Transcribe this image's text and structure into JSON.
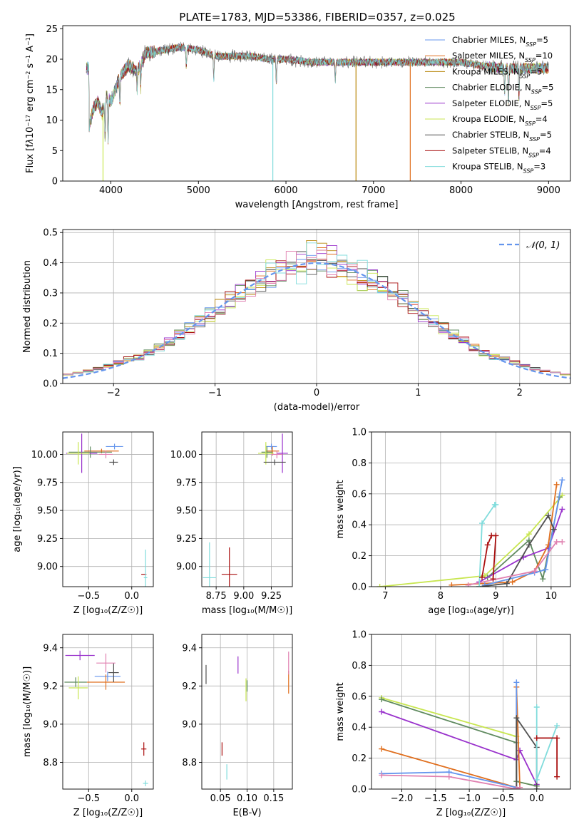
{
  "title": "PLATE=1783, MJD=53386, FIBERID=0357, z=0.025",
  "colors": {
    "chabrier_miles": "#6495ed",
    "salpeter_miles": "#e07020",
    "kroupa_miles": "#b8860b",
    "chabrier_elodie": "#5f8a5f",
    "salpeter_elodie": "#9932cc",
    "kroupa_elodie": "#c8e650",
    "chabrier_stelib": "#505050",
    "salpeter_stelib": "#aa1010",
    "kroupa_stelib": "#80dcdc",
    "normal": "#6495ed",
    "pink": "#e080b0"
  },
  "chart_data": [
    {
      "id": "spectrum",
      "type": "line",
      "xlabel": "wavelength [Angstrom, rest frame]",
      "ylabel_html": "Flux [f<tspan font-style='italic'>λ</tspan>10<tspan baseline-shift='super' font-size='8'>−17</tspan> erg cm<tspan baseline-shift='super' font-size='8'>−2</tspan> s<tspan baseline-shift='super' font-size='8'>−1</tspan> A<tspan baseline-shift='super' font-size='8'>−1</tspan>]",
      "xlim": [
        3450,
        9250
      ],
      "ylim": [
        0,
        25.5
      ],
      "xticks": [
        4000,
        5000,
        6000,
        7000,
        8000,
        9000
      ],
      "yticks": [
        0,
        5,
        10,
        15,
        20,
        25
      ],
      "grid": false,
      "legend_position": "top-right",
      "legend": [
        {
          "label": "Chabrier MILES, N",
          "sub": "SSP",
          "tail": "=5",
          "color": "#6495ed"
        },
        {
          "label": "Salpeter MILES, N",
          "sub": "SSP",
          "tail": "=10",
          "color": "#e07020"
        },
        {
          "label": "Kroupa MILES, N",
          "sub": "SSP",
          "tail": "=5",
          "color": "#b8860b"
        },
        {
          "label": "Chabrier ELODIE, N",
          "sub": "SSP",
          "tail": "=5",
          "color": "#5f8a5f"
        },
        {
          "label": "Salpeter ELODIE, N",
          "sub": "SSP",
          "tail": "=5",
          "color": "#9932cc"
        },
        {
          "label": "Kroupa ELODIE, N",
          "sub": "SSP",
          "tail": "=4",
          "color": "#c8e650"
        },
        {
          "label": "Chabrier STELIB, N",
          "sub": "SSP",
          "tail": "=5",
          "color": "#505050"
        },
        {
          "label": "Salpeter STELIB, N",
          "sub": "SSP",
          "tail": "=4",
          "color": "#aa1010"
        },
        {
          "label": "Kroupa STELIB, N",
          "sub": "SSP",
          "tail": "=3",
          "color": "#80dcdc"
        }
      ],
      "continuum": [
        [
          3750,
          9
        ],
        [
          3800,
          12
        ],
        [
          3850,
          13
        ],
        [
          3900,
          11
        ],
        [
          3950,
          14
        ],
        [
          4000,
          13
        ],
        [
          4100,
          17
        ],
        [
          4200,
          19
        ],
        [
          4300,
          18
        ],
        [
          4400,
          21
        ],
        [
          4600,
          21.5
        ],
        [
          4800,
          22
        ],
        [
          5000,
          21.5
        ],
        [
          5200,
          20.5
        ],
        [
          5400,
          20.5
        ],
        [
          5600,
          20.5
        ],
        [
          5800,
          20
        ],
        [
          6000,
          20
        ],
        [
          6300,
          19.5
        ],
        [
          6600,
          19.5
        ],
        [
          7000,
          19.5
        ],
        [
          7300,
          19.5
        ],
        [
          7500,
          19.5
        ],
        [
          8000,
          19.5
        ],
        [
          8200,
          19
        ],
        [
          8500,
          18.5
        ],
        [
          8800,
          18.5
        ],
        [
          9000,
          18.5
        ]
      ],
      "absorption_lines": [
        [
          3934,
          6
        ],
        [
          3968,
          7
        ],
        [
          4102,
          4
        ],
        [
          4300,
          3
        ],
        [
          4340,
          4
        ],
        [
          4861,
          3
        ],
        [
          5175,
          4
        ],
        [
          5890,
          4
        ],
        [
          6563,
          3
        ],
        [
          8498,
          4
        ],
        [
          8542,
          6
        ],
        [
          8662,
          5
        ]
      ],
      "drops": [
        {
          "x": 3910,
          "to": 0,
          "color": "#c8e650"
        },
        {
          "x": 5850,
          "to": 0,
          "color": "#80dcdc"
        },
        {
          "x": 6800,
          "to": 0,
          "color": "#b8860b"
        },
        {
          "x": 7420,
          "to": 0,
          "color": "#e07020"
        }
      ]
    },
    {
      "id": "residuals",
      "type": "line",
      "xlabel": "(data-model)/error",
      "ylabel": "Normed distribution",
      "xlim": [
        -2.5,
        2.5
      ],
      "ylim": [
        0,
        0.51
      ],
      "xticks": [
        -2,
        -1,
        0,
        1,
        2
      ],
      "yticks": [
        0,
        0.1,
        0.2,
        0.3,
        0.4,
        0.5
      ],
      "grid": true,
      "legend_position": "top-right",
      "legend_label": "𝒩(0, 1)",
      "bin_width": 0.1
    },
    {
      "id": "age_vs_Z",
      "type": "scatter",
      "xlabel": "Z [log₁₀(Z/Z☉)]",
      "ylabel": "age  [log₁₀(age/yr)]",
      "xlim": [
        -0.8,
        0.25
      ],
      "ylim": [
        8.82,
        10.2
      ],
      "xticks": [
        -0.5,
        0.0
      ],
      "yticks": [
        9.0,
        9.25,
        9.5,
        9.75,
        10.0
      ],
      "grid": true,
      "points": [
        {
          "x": -0.2,
          "y": 10.07,
          "xerr": 0.1,
          "yerr": 0.05,
          "color": "#6495ed"
        },
        {
          "x": -0.35,
          "y": 10.03,
          "xerr": 0.2,
          "yerr": 0.04,
          "color": "#e07020"
        },
        {
          "x": -0.48,
          "y": 10.02,
          "xerr": 0.25,
          "yerr": 0.1,
          "color": "#5f8a5f"
        },
        {
          "x": -0.58,
          "y": 10.01,
          "xerr": 0.18,
          "yerr": 0.35,
          "color": "#9932cc"
        },
        {
          "x": -0.62,
          "y": 10.01,
          "xerr": 0.13,
          "yerr": 0.2,
          "color": "#c8e650"
        },
        {
          "x": -0.21,
          "y": 9.93,
          "xerr": 0.05,
          "yerr": 0.05,
          "color": "#505050"
        },
        {
          "x": 0.14,
          "y": 8.93,
          "xerr": 0.03,
          "yerr": 0.0,
          "color": "#aa1010"
        },
        {
          "x": 0.16,
          "y": 8.9,
          "xerr": 0.02,
          "yerr": 0.5,
          "color": "#80dcdc"
        },
        {
          "x": -0.3,
          "y": 10.0,
          "xerr": 0.08,
          "yerr": 0.07,
          "color": "#e080b0"
        }
      ]
    },
    {
      "id": "age_vs_mass",
      "type": "scatter",
      "xlabel": "mass [log₁₀(M/M☉)]",
      "xlim": [
        8.62,
        9.44
      ],
      "ylim": [
        8.82,
        10.2
      ],
      "xticks": [
        8.75,
        9.0,
        9.25
      ],
      "yticks": [
        9.0,
        9.25,
        9.5,
        9.75,
        10.0
      ],
      "grid": true,
      "points": [
        {
          "x": 9.25,
          "y": 10.07,
          "xerr": 0.05,
          "yerr": 0.05,
          "color": "#6495ed"
        },
        {
          "x": 9.26,
          "y": 10.03,
          "xerr": 0.06,
          "yerr": 0.08,
          "color": "#e07020"
        },
        {
          "x": 9.21,
          "y": 10.02,
          "xerr": 0.05,
          "yerr": 0.1,
          "color": "#5f8a5f"
        },
        {
          "x": 9.35,
          "y": 10.01,
          "xerr": 0.05,
          "yerr": 0.35,
          "color": "#9932cc"
        },
        {
          "x": 9.2,
          "y": 10.01,
          "xerr": 0.07,
          "yerr": 0.2,
          "color": "#c8e650"
        },
        {
          "x": 9.28,
          "y": 9.93,
          "xerr": 0.1,
          "yerr": 0.05,
          "color": "#505050"
        },
        {
          "x": 8.87,
          "y": 8.93,
          "xerr": 0.07,
          "yerr": 0.48,
          "color": "#aa1010"
        },
        {
          "x": 8.69,
          "y": 8.9,
          "xerr": 0.06,
          "yerr": 0.63,
          "color": "#80dcdc"
        },
        {
          "x": 9.3,
          "y": 10.0,
          "xerr": 0.05,
          "yerr": 0.07,
          "color": "#e080b0"
        }
      ]
    },
    {
      "id": "massweight_vs_age",
      "type": "line",
      "xlabel": "age  [log₁₀(age/yr)]",
      "ylabel": "mass weight",
      "xlim": [
        6.75,
        10.35
      ],
      "ylim": [
        0,
        1.0
      ],
      "xticks": [
        7,
        8,
        9,
        10
      ],
      "yticks": [
        0,
        0.2,
        0.4,
        0.6,
        0.8,
        1.0
      ],
      "grid": true,
      "series": [
        {
          "color": "#c8e650",
          "x": [
            6.9,
            8.8,
            9.6,
            10.2
          ],
          "y": [
            0.0,
            0.07,
            0.34,
            0.59
          ]
        },
        {
          "color": "#5f8a5f",
          "x": [
            8.85,
            9.6,
            9.85,
            10.15
          ],
          "y": [
            0.06,
            0.3,
            0.05,
            0.58
          ]
        },
        {
          "color": "#9932cc",
          "x": [
            8.7,
            9.5,
            9.95,
            10.2
          ],
          "y": [
            0.03,
            0.19,
            0.25,
            0.5
          ]
        },
        {
          "color": "#e07020",
          "x": [
            8.2,
            9.3,
            9.7,
            9.95,
            10.1
          ],
          "y": [
            0.01,
            0.03,
            0.1,
            0.27,
            0.66
          ]
        },
        {
          "color": "#6495ed",
          "x": [
            8.8,
            9.7,
            9.9,
            10.2
          ],
          "y": [
            0.01,
            0.09,
            0.11,
            0.69
          ]
        },
        {
          "color": "#505050",
          "x": [
            8.7,
            9.2,
            9.6,
            9.95,
            10.05
          ],
          "y": [
            0.0,
            0.02,
            0.27,
            0.46,
            0.37
          ]
        },
        {
          "color": "#e080b0",
          "x": [
            8.5,
            9.7,
            10.1,
            10.2
          ],
          "y": [
            0.01,
            0.1,
            0.29,
            0.29
          ]
        },
        {
          "color": "#80dcdc",
          "x": [
            8.7,
            8.75,
            8.98,
            9.0
          ],
          "y": [
            0.0,
            0.41,
            0.53,
            0.53
          ]
        },
        {
          "color": "#aa1010",
          "x": [
            8.75,
            8.85,
            8.92,
            9.0,
            8.95
          ],
          "y": [
            0.06,
            0.27,
            0.33,
            0.33,
            0.05
          ]
        }
      ]
    },
    {
      "id": "mass_vs_Z",
      "type": "scatter",
      "xlabel": "Z [log₁₀(Z/Z☉)]",
      "ylabel": "mass [log₁₀(M/M☉)]",
      "xlim": [
        -0.8,
        0.25
      ],
      "ylim": [
        8.66,
        9.47
      ],
      "xticks": [
        -0.5,
        0.0
      ],
      "yticks": [
        8.8,
        9.0,
        9.2,
        9.4
      ],
      "grid": true,
      "points": [
        {
          "x": -0.28,
          "y": 9.25,
          "xerr": 0.15,
          "yerr": 0.05,
          "color": "#6495ed"
        },
        {
          "x": -0.3,
          "y": 9.22,
          "xerr": 0.22,
          "yerr": 0.08,
          "color": "#e07020"
        },
        {
          "x": -0.65,
          "y": 9.22,
          "xerr": 0.13,
          "yerr": 0.05,
          "color": "#5f8a5f"
        },
        {
          "x": -0.6,
          "y": 9.36,
          "xerr": 0.17,
          "yerr": 0.05,
          "color": "#9932cc"
        },
        {
          "x": -0.62,
          "y": 9.19,
          "xerr": 0.11,
          "yerr": 0.12,
          "color": "#c8e650"
        },
        {
          "x": -0.21,
          "y": 9.27,
          "xerr": 0.06,
          "yerr": 0.1,
          "color": "#505050"
        },
        {
          "x": 0.14,
          "y": 8.87,
          "xerr": 0.03,
          "yerr": 0.07,
          "color": "#aa1010"
        },
        {
          "x": 0.16,
          "y": 8.69,
          "xerr": 0.03,
          "yerr": 0.03,
          "color": "#80dcdc"
        },
        {
          "x": -0.3,
          "y": 9.32,
          "xerr": 0.11,
          "yerr": 0.1,
          "color": "#e080b0"
        }
      ]
    },
    {
      "id": "mass_vs_EBV",
      "type": "scatter",
      "xlabel": "E(B-V)",
      "xlim": [
        0.015,
        0.185
      ],
      "ylim": [
        8.66,
        9.47
      ],
      "xticks": [
        0.05,
        0.1,
        0.15
      ],
      "yticks": [
        8.8,
        9.0,
        9.2,
        9.4
      ],
      "grid": true,
      "points": [
        {
          "x": 0.1,
          "y": 9.2,
          "xerr": 0.0,
          "yerr": 0.05,
          "color": "#6495ed"
        },
        {
          "x": 0.178,
          "y": 9.22,
          "xerr": 0.0,
          "yerr": 0.12,
          "color": "#e07020"
        },
        {
          "x": 0.1,
          "y": 9.2,
          "xerr": 0.0,
          "yerr": 0.06,
          "color": "#5f8a5f"
        },
        {
          "x": 0.083,
          "y": 9.31,
          "xerr": 0.0,
          "yerr": 0.09,
          "color": "#9932cc"
        },
        {
          "x": 0.098,
          "y": 9.18,
          "xerr": 0.0,
          "yerr": 0.12,
          "color": "#c8e650"
        },
        {
          "x": 0.023,
          "y": 9.26,
          "xerr": 0.0,
          "yerr": 0.1,
          "color": "#505050"
        },
        {
          "x": 0.053,
          "y": 8.87,
          "xerr": 0.0,
          "yerr": 0.07,
          "color": "#aa1010"
        },
        {
          "x": 0.062,
          "y": 8.75,
          "xerr": 0.0,
          "yerr": 0.08,
          "color": "#80dcdc"
        },
        {
          "x": 0.178,
          "y": 9.32,
          "xerr": 0.0,
          "yerr": 0.12,
          "color": "#e080b0"
        }
      ]
    },
    {
      "id": "massweight_vs_Z",
      "type": "line",
      "xlabel": "Z [log₁₀(Z/Z☉)]",
      "ylabel": "mass weight",
      "xlim": [
        -2.45,
        0.5
      ],
      "ylim": [
        0,
        1.0
      ],
      "xticks": [
        -2.0,
        -1.5,
        -1.0,
        -0.5,
        0.0
      ],
      "yticks": [
        0,
        0.2,
        0.4,
        0.6,
        0.8,
        1.0
      ],
      "grid": true,
      "series": [
        {
          "color": "#c8e650",
          "x": [
            -2.3,
            -0.3,
            -0.3,
            0.0
          ],
          "y": [
            0.59,
            0.34,
            0.05,
            0.02
          ]
        },
        {
          "color": "#5f8a5f",
          "x": [
            -2.3,
            -0.3,
            -0.3,
            0.0
          ],
          "y": [
            0.58,
            0.3,
            0.05,
            0.02
          ]
        },
        {
          "color": "#9932cc",
          "x": [
            -2.3,
            -0.3,
            -0.25,
            0.0
          ],
          "y": [
            0.5,
            0.19,
            0.25,
            0.03
          ]
        },
        {
          "color": "#e07020",
          "x": [
            -2.3,
            -0.3,
            -0.3,
            -0.25
          ],
          "y": [
            0.26,
            0.01,
            0.66,
            0.01
          ]
        },
        {
          "color": "#6495ed",
          "x": [
            -2.3,
            -1.3,
            -0.3,
            -0.3
          ],
          "y": [
            0.1,
            0.11,
            0.01,
            0.69
          ]
        },
        {
          "color": "#505050",
          "x": [
            -0.3,
            -0.3,
            0.0,
            0.0
          ],
          "y": [
            0.0,
            0.46,
            0.27,
            0.0
          ]
        },
        {
          "color": "#e080b0",
          "x": [
            -2.3,
            -1.3,
            -0.3,
            -0.25
          ],
          "y": [
            0.09,
            0.08,
            0.0,
            0.01
          ]
        },
        {
          "color": "#80dcdc",
          "x": [
            0.0,
            0.0,
            0.3
          ],
          "y": [
            0.53,
            0.06,
            0.41
          ]
        },
        {
          "color": "#aa1010",
          "x": [
            0.0,
            0.3,
            0.3
          ],
          "y": [
            0.33,
            0.33,
            0.08
          ]
        }
      ]
    }
  ]
}
